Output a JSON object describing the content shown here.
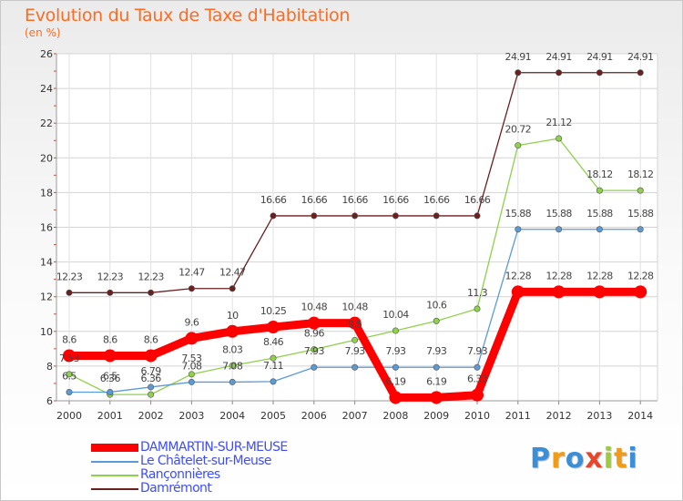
{
  "title": "Evolution du Taux de Taxe d'Habitation",
  "subtitle": "(en %)",
  "brand": "Proxiti",
  "brand_colors": [
    "#3a8fd8",
    "#f39c12",
    "#3a8fd8",
    "#e8462a",
    "#9ccc3c",
    "#f39c12",
    "#3a8fd8"
  ],
  "chart_data": {
    "type": "line",
    "title": "Evolution du Taux de Taxe d'Habitation",
    "ylabel": "(en %)",
    "xlabel": "",
    "x": [
      "2000",
      "2001",
      "2002",
      "2003",
      "2004",
      "2005",
      "2006",
      "2007",
      "2008",
      "2009",
      "2010",
      "2011",
      "2012",
      "2013",
      "2014"
    ],
    "ylim": [
      6,
      26
    ],
    "yticks": [
      "6",
      "8",
      "10",
      "12",
      "14",
      "16",
      "18",
      "20",
      "22",
      "24",
      "26"
    ],
    "grid": true,
    "legend_position": "bottom-left",
    "series": [
      {
        "name": "DAMMARTIN-SUR-MEUSE",
        "color": "#ff0000",
        "values": [
          8.6,
          8.6,
          8.6,
          9.6,
          10,
          10.25,
          10.48,
          10.48,
          6.19,
          6.19,
          6.33,
          12.28,
          12.28,
          12.28,
          12.28
        ],
        "labels": [
          "8.6",
          "8.6",
          "8.6",
          "9.6",
          "10",
          "10.25",
          "10.48",
          "10.48",
          "6.19",
          "6.19",
          "6.33",
          "12.28",
          "12.28",
          "12.28",
          "12.28"
        ]
      },
      {
        "name": "Le Châtelet-sur-Meuse",
        "color": "#5b9bd5",
        "values": [
          6.5,
          6.5,
          6.79,
          7.08,
          7.08,
          7.11,
          7.93,
          7.93,
          7.93,
          7.93,
          7.93,
          15.88,
          15.88,
          15.88,
          15.88
        ],
        "labels": [
          "6.5",
          "6.5",
          "6.79",
          "7.08",
          "7.08",
          "7.11",
          "7.93",
          "7.93",
          "7.93",
          "7.93",
          "7.93",
          "15.88",
          "15.88",
          "15.88",
          "15.88"
        ]
      },
      {
        "name": "Rançonnières",
        "color": "#8ed14b",
        "values": [
          7.53,
          6.36,
          6.36,
          7.53,
          8.03,
          8.46,
          8.96,
          9.5,
          10.04,
          10.6,
          11.3,
          20.72,
          21.12,
          18.12,
          18.12
        ],
        "labels": [
          "7.53",
          "6.36",
          "6.36",
          "7.53",
          "8.03",
          "8.46",
          "8.96",
          "9.5",
          "10.04",
          "10.6",
          "11.3",
          "20.72",
          "21.12",
          "18.12",
          "18.12"
        ]
      },
      {
        "name": "Damrémont",
        "color": "#6b1f1f",
        "values": [
          12.23,
          12.23,
          12.23,
          12.47,
          12.47,
          16.66,
          16.66,
          16.66,
          16.66,
          16.66,
          16.66,
          24.91,
          24.91,
          24.91,
          24.91
        ],
        "labels": [
          "12.23",
          "12.23",
          "12.23",
          "12.47",
          "12.47",
          "16.66",
          "16.66",
          "16.66",
          "16.66",
          "16.66",
          "16.66",
          "24.91",
          "24.91",
          "24.91",
          "24.91"
        ]
      }
    ]
  }
}
